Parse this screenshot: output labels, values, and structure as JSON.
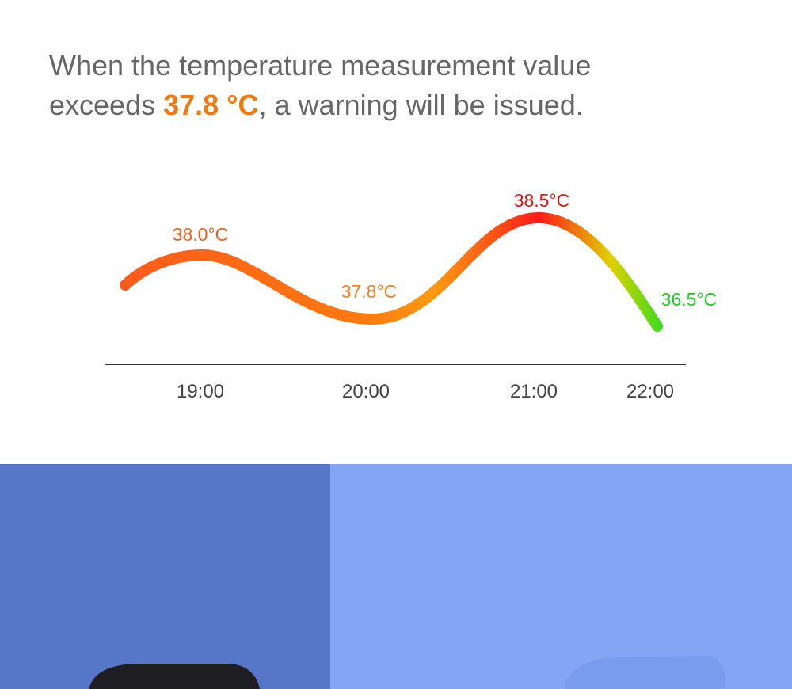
{
  "headline": {
    "line1": "When the temperature measurement value",
    "line2_before": "exceeds ",
    "highlight": "37.8 °C",
    "line2_after": ", a warning will be issued."
  },
  "chart": {
    "temperature_labels": [
      "38.0°C",
      "37.8°C",
      "38.5°C",
      "36.5°C"
    ],
    "time_labels": [
      "19:00",
      "20:00",
      "21:00",
      "22:00"
    ]
  }
}
